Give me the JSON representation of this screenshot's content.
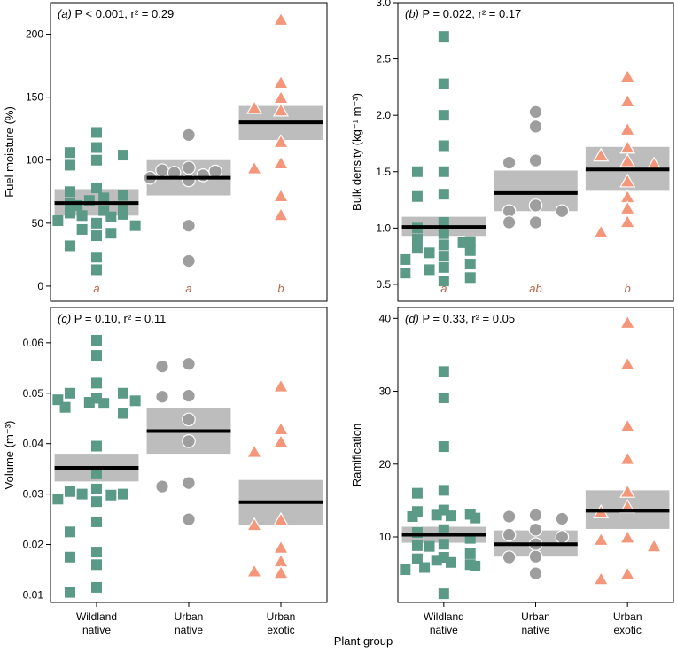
{
  "figure": {
    "xlabel": "Plant group",
    "group_names": [
      "Wildland native",
      "Urban native",
      "Urban exotic"
    ],
    "group_label_lines": [
      [
        "Wildland",
        "native"
      ],
      [
        "Urban",
        "native"
      ],
      [
        "Urban",
        "exotic"
      ]
    ],
    "colors": {
      "wildland_native": "#5b9a86",
      "urban_native": "#9e9e9e",
      "urban_exotic": "#f4967a",
      "ci_band": "#bdbdbd",
      "mean_line": "#000000",
      "letters": "#b5654a"
    },
    "markers": [
      "square",
      "circle",
      "triangle"
    ]
  },
  "chart_data": [
    {
      "type": "scatter",
      "panel": "(a)",
      "title_parts": {
        "letter": "(a)",
        "stat_p": "P < 0.001",
        "stat_r2": "r² = 0.29"
      },
      "ylabel": "Fuel moisture (%)",
      "ylim": [
        -12,
        225
      ],
      "yticks": [
        0,
        50,
        100,
        150,
        200
      ],
      "grid": false,
      "letters": [
        "a",
        "a",
        "b"
      ],
      "groups": [
        {
          "name": "Wildland native",
          "mean": 66,
          "ci": [
            56,
            77
          ],
          "points": [
            122,
            110,
            106,
            104,
            100,
            96,
            78,
            75,
            72,
            70,
            68,
            66,
            64,
            62,
            60,
            58,
            57,
            56,
            55,
            52,
            50,
            48,
            45,
            42,
            40,
            32,
            23,
            13
          ]
        },
        {
          "name": "Urban native",
          "mean": 86,
          "ci": [
            72,
            100
          ],
          "points": [
            120,
            94,
            92,
            91,
            90,
            88,
            86,
            84,
            48,
            20
          ]
        },
        {
          "name": "Urban exotic",
          "mean": 130,
          "ci": [
            116,
            143
          ],
          "points": [
            212,
            162,
            150,
            142,
            140,
            115,
            98,
            94,
            72,
            57
          ]
        }
      ]
    },
    {
      "type": "scatter",
      "panel": "(b)",
      "title_parts": {
        "letter": "(b)",
        "stat_p": "P = 0.022",
        "stat_r2": "r² = 0.17"
      },
      "ylabel": "Bulk density (kg⁻¹ m⁻³)",
      "ylim": [
        0.35,
        3.0
      ],
      "yticks": [
        0.5,
        1.0,
        1.5,
        2.0,
        2.5,
        3.0
      ],
      "grid": false,
      "letters": [
        "a",
        "ab",
        "b"
      ],
      "groups": [
        {
          "name": "Wildland native",
          "mean": 1.01,
          "ci": [
            0.93,
            1.1
          ],
          "points": [
            2.7,
            2.28,
            2.0,
            1.73,
            1.5,
            1.5,
            1.3,
            1.28,
            1.05,
            1.0,
            0.95,
            0.9,
            0.88,
            0.87,
            0.85,
            0.82,
            0.8,
            0.78,
            0.75,
            0.72,
            0.68,
            0.65,
            0.63,
            0.6,
            0.56,
            0.53
          ]
        },
        {
          "name": "Urban native",
          "mean": 1.31,
          "ci": [
            1.15,
            1.51
          ],
          "points": [
            2.03,
            1.9,
            1.6,
            1.58,
            1.2,
            1.15,
            1.15,
            1.05,
            1.05
          ]
        },
        {
          "name": "Urban exotic",
          "mean": 1.52,
          "ci": [
            1.33,
            1.72
          ],
          "points": [
            2.35,
            2.13,
            1.88,
            1.72,
            1.65,
            1.6,
            1.57,
            1.42,
            1.28,
            1.18,
            1.06,
            0.97
          ]
        }
      ]
    },
    {
      "type": "scatter",
      "panel": "(c)",
      "title_parts": {
        "letter": "(c)",
        "stat_p": "P = 0.10",
        "stat_r2": "r² = 0.11"
      },
      "ylabel": "Volume (m⁻³)",
      "ylim": [
        0.0085,
        0.067
      ],
      "yticks": [
        0.01,
        0.02,
        0.03,
        0.04,
        0.05,
        0.06
      ],
      "grid": false,
      "letters": [],
      "groups": [
        {
          "name": "Wildland native",
          "mean": 0.0352,
          "ci": [
            0.0325,
            0.038
          ],
          "points": [
            0.0605,
            0.0575,
            0.052,
            0.05,
            0.05,
            0.049,
            0.0487,
            0.0485,
            0.0482,
            0.048,
            0.0472,
            0.046,
            0.0395,
            0.034,
            0.031,
            0.0305,
            0.03,
            0.03,
            0.0298,
            0.029,
            0.0285,
            0.0245,
            0.0225,
            0.0185,
            0.0175,
            0.016,
            0.0115,
            0.0105
          ]
        },
        {
          "name": "Urban native",
          "mean": 0.0425,
          "ci": [
            0.038,
            0.047
          ],
          "points": [
            0.0558,
            0.0553,
            0.0495,
            0.0493,
            0.0448,
            0.0405,
            0.0322,
            0.0315,
            0.025
          ]
        },
        {
          "name": "Urban exotic",
          "mean": 0.0284,
          "ci": [
            0.0238,
            0.0328
          ],
          "points": [
            0.0515,
            0.043,
            0.0405,
            0.0385,
            0.025,
            0.024,
            0.0195,
            0.0168,
            0.0148,
            0.0145
          ]
        }
      ]
    },
    {
      "type": "scatter",
      "panel": "(d)",
      "title_parts": {
        "letter": "(d)",
        "stat_p": "P = 0.33",
        "stat_r2": "r² = 0.05"
      },
      "ylabel": "Ramification",
      "ylim": [
        1,
        41.5
      ],
      "yticks": [
        10,
        20,
        30,
        40
      ],
      "grid": false,
      "letters": [],
      "groups": [
        {
          "name": "Wildland native",
          "mean": 10.3,
          "ci": [
            9.2,
            11.4
          ],
          "points": [
            32.7,
            29.1,
            22.4,
            16.4,
            16.0,
            13.7,
            13.5,
            13.1,
            13.0,
            12.9,
            12.8,
            12.6,
            11.0,
            10.6,
            9.8,
            9.0,
            8.8,
            8.7,
            7.7,
            7.2,
            7.0,
            6.8,
            6.5,
            6.2,
            6.0,
            5.8,
            5.5,
            2.2
          ]
        },
        {
          "name": "Urban native",
          "mean": 9.0,
          "ci": [
            7.3,
            10.9
          ],
          "points": [
            13.0,
            12.8,
            12.5,
            11.0,
            10.3,
            10.0,
            9.0,
            7.3,
            7.2,
            5.0
          ]
        },
        {
          "name": "Urban exotic",
          "mean": 13.6,
          "ci": [
            11.1,
            16.4
          ],
          "points": [
            39.5,
            33.8,
            25.3,
            20.8,
            16.3,
            14.2,
            13.5,
            10.0,
            9.7,
            8.8,
            5.0,
            4.3
          ]
        }
      ]
    }
  ]
}
